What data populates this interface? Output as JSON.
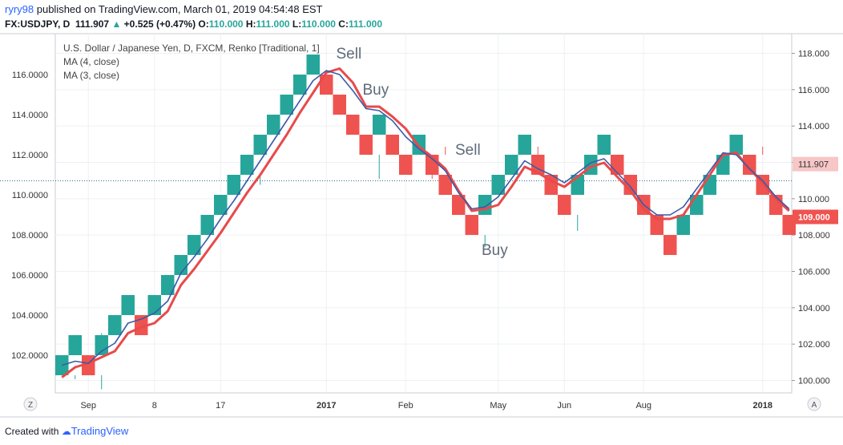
{
  "header": {
    "user": "ryry98",
    "published": " published on TradingView.com, March 01, 2019 04:54:48 EST",
    "symbol": "FX:USDJPY, D",
    "last": "111.907",
    "change": "+0.525 (+0.47%)",
    "o_label": "O:",
    "o_value": "110.000",
    "h_label": "H:",
    "h_value": "111.000",
    "l_label": "L:",
    "l_value": "110.000",
    "c_label": "C:",
    "c_value": "111.000"
  },
  "legend": {
    "title": "U.S. Dollar / Japanese Yen, D, FXCM, Renko [Traditional, 1]",
    "ma1": "MA (4, close)",
    "ma2": "MA (3, close)"
  },
  "footer": {
    "created": "Created with",
    "brand": "TradingView"
  },
  "buttons": {
    "left": "Z",
    "right": "A"
  },
  "colors": {
    "up": "#26a69a",
    "down": "#ef5350",
    "ma4": "#e84a4a",
    "ma3": "#3a5aa8",
    "price_line": "#2f6f8f"
  },
  "chart_data": {
    "type": "renko",
    "brick_size": 1,
    "bricks": [
      {
        "low": 101,
        "high": 102,
        "dir": "up"
      },
      {
        "low": 102,
        "high": 103,
        "dir": "up"
      },
      {
        "low": 101,
        "high": 102,
        "dir": "down"
      },
      {
        "low": 102,
        "high": 103,
        "dir": "up"
      },
      {
        "low": 103,
        "high": 104,
        "dir": "up"
      },
      {
        "low": 104,
        "high": 105,
        "dir": "up"
      },
      {
        "low": 103,
        "high": 104,
        "dir": "down"
      },
      {
        "low": 104,
        "high": 105,
        "dir": "up"
      },
      {
        "low": 105,
        "high": 106,
        "dir": "up"
      },
      {
        "low": 106,
        "high": 107,
        "dir": "up"
      },
      {
        "low": 107,
        "high": 108,
        "dir": "up"
      },
      {
        "low": 108,
        "high": 109,
        "dir": "up"
      },
      {
        "low": 109,
        "high": 110,
        "dir": "up"
      },
      {
        "low": 110,
        "high": 111,
        "dir": "up"
      },
      {
        "low": 111,
        "high": 112,
        "dir": "up"
      },
      {
        "low": 112,
        "high": 113,
        "dir": "up"
      },
      {
        "low": 113,
        "high": 114,
        "dir": "up"
      },
      {
        "low": 114,
        "high": 115,
        "dir": "up"
      },
      {
        "low": 115,
        "high": 116,
        "dir": "up"
      },
      {
        "low": 116,
        "high": 117,
        "dir": "up"
      },
      {
        "low": 115,
        "high": 116,
        "dir": "down"
      },
      {
        "low": 114,
        "high": 115,
        "dir": "down"
      },
      {
        "low": 113,
        "high": 114,
        "dir": "down"
      },
      {
        "low": 112,
        "high": 113,
        "dir": "down"
      },
      {
        "low": 113,
        "high": 114,
        "dir": "up"
      },
      {
        "low": 112,
        "high": 113,
        "dir": "down"
      },
      {
        "low": 111,
        "high": 112,
        "dir": "down"
      },
      {
        "low": 112,
        "high": 113,
        "dir": "up"
      },
      {
        "low": 111,
        "high": 112,
        "dir": "down"
      },
      {
        "low": 110,
        "high": 111,
        "dir": "down"
      },
      {
        "low": 109,
        "high": 110,
        "dir": "down"
      },
      {
        "low": 108,
        "high": 109,
        "dir": "down"
      },
      {
        "low": 109,
        "high": 110,
        "dir": "up"
      },
      {
        "low": 110,
        "high": 111,
        "dir": "up"
      },
      {
        "low": 111,
        "high": 112,
        "dir": "up"
      },
      {
        "low": 112,
        "high": 113,
        "dir": "up"
      },
      {
        "low": 111,
        "high": 112,
        "dir": "down"
      },
      {
        "low": 110,
        "high": 111,
        "dir": "down"
      },
      {
        "low": 109,
        "high": 110,
        "dir": "down"
      },
      {
        "low": 110,
        "high": 111,
        "dir": "up"
      },
      {
        "low": 111,
        "high": 112,
        "dir": "up"
      },
      {
        "low": 112,
        "high": 113,
        "dir": "up"
      },
      {
        "low": 111,
        "high": 112,
        "dir": "down"
      },
      {
        "low": 110,
        "high": 111,
        "dir": "down"
      },
      {
        "low": 109,
        "high": 110,
        "dir": "down"
      },
      {
        "low": 108,
        "high": 109,
        "dir": "down"
      },
      {
        "low": 107,
        "high": 108,
        "dir": "down"
      },
      {
        "low": 108,
        "high": 109,
        "dir": "up"
      },
      {
        "low": 109,
        "high": 110,
        "dir": "up"
      },
      {
        "low": 110,
        "high": 111,
        "dir": "up"
      },
      {
        "low": 111,
        "high": 112,
        "dir": "up"
      },
      {
        "low": 112,
        "high": 113,
        "dir": "up"
      },
      {
        "low": 111,
        "high": 112,
        "dir": "down"
      },
      {
        "low": 110,
        "high": 111,
        "dir": "down"
      },
      {
        "low": 109,
        "high": 110,
        "dir": "down"
      },
      {
        "low": 108,
        "high": 109,
        "dir": "down"
      }
    ],
    "wicks": [
      {
        "brick": 1,
        "low": 100.8,
        "high": 101
      },
      {
        "brick": 3,
        "low": 102,
        "high": 103.1
      },
      {
        "brick": 3,
        "low": 100.3,
        "high": 101
      },
      {
        "brick": 15,
        "low": 110.5,
        "high": 111
      },
      {
        "brick": 24,
        "low": 110.8,
        "high": 112
      },
      {
        "brick": 28,
        "low": 110.8,
        "high": 112
      },
      {
        "brick": 29,
        "low": 112,
        "high": 112.4
      },
      {
        "brick": 32,
        "low": 107.4,
        "high": 108
      },
      {
        "brick": 36,
        "low": 112,
        "high": 112.4
      },
      {
        "brick": 39,
        "low": 108.2,
        "high": 109
      },
      {
        "brick": 48,
        "low": 109.4,
        "high": 109.5
      },
      {
        "brick": 53,
        "low": 112,
        "high": 112.4
      }
    ],
    "ma4": [
      100.9,
      101.4,
      101.6,
      101.9,
      102.2,
      103.1,
      103.4,
      103.6,
      104.2,
      105.5,
      106.3,
      107.2,
      108.1,
      109.1,
      110.1,
      111.0,
      112.0,
      113.0,
      114.1,
      115.1,
      116.1,
      116.3,
      115.6,
      114.4,
      114.4,
      113.9,
      113.3,
      112.4,
      111.9,
      111.3,
      110.2,
      109.2,
      109.3,
      109.5,
      110.4,
      111.4,
      111.1,
      110.7,
      110.4,
      110.9,
      111.4,
      111.6,
      110.9,
      110.2,
      109.3,
      108.8,
      108.8,
      109.0,
      110.0,
      111.0,
      112.0,
      112.1,
      111.3,
      110.6,
      109.8,
      109.2
    ],
    "ma3": [
      101.5,
      101.7,
      101.6,
      102.2,
      102.6,
      103.6,
      103.8,
      104.1,
      104.7,
      106.1,
      106.9,
      107.8,
      108.8,
      109.7,
      110.7,
      111.7,
      112.7,
      113.7,
      114.7,
      115.7,
      116.2,
      116.0,
      115.2,
      114.3,
      114.2,
      113.7,
      112.9,
      112.3,
      111.8,
      111.2,
      110.1,
      109.3,
      109.4,
      109.9,
      110.8,
      111.7,
      111.3,
      111.0,
      110.6,
      111.1,
      111.6,
      111.8,
      111.1,
      110.4,
      109.5,
      109.0,
      109.0,
      109.4,
      110.3,
      111.2,
      112.1,
      112.0,
      111.3,
      110.7,
      109.9,
      109.3
    ],
    "price_ticks": [
      "102.0000",
      "104.0000",
      "106.0000",
      "108.0000",
      "110.0000",
      "112.0000",
      "114.0000",
      "116.0000"
    ],
    "right_ticks": [
      "100.000",
      "102.000",
      "104.000",
      "106.000",
      "108.000",
      "110.000",
      "112.000",
      "114.000",
      "116.000",
      "118.000"
    ],
    "time_labels": [
      {
        "label": "Sep",
        "brick": 2,
        "bold": false
      },
      {
        "label": "8",
        "brick": 7,
        "bold": false
      },
      {
        "label": "17",
        "brick": 12,
        "bold": false
      },
      {
        "label": "2017",
        "brick": 20,
        "bold": true
      },
      {
        "label": "Feb",
        "brick": 26,
        "bold": false
      },
      {
        "label": "May",
        "brick": 33,
        "bold": false
      },
      {
        "label": "Jun",
        "brick": 38,
        "bold": false
      },
      {
        "label": "Aug",
        "brick": 44,
        "bold": false
      },
      {
        "label": "2018",
        "brick": 53,
        "bold": true
      }
    ],
    "annotations": [
      {
        "text": "Sell",
        "brick": 21,
        "y": 116.8
      },
      {
        "text": "Buy",
        "brick": 23,
        "y": 115.0
      },
      {
        "text": "Sell",
        "brick": 30,
        "y": 112.0
      },
      {
        "text": "Buy",
        "brick": 32,
        "y": 107.0
      }
    ],
    "price_line": 110.7,
    "last_price_label": "111.907",
    "bottom_price_label": "109.000",
    "ylim": [
      100,
      118.5
    ]
  }
}
